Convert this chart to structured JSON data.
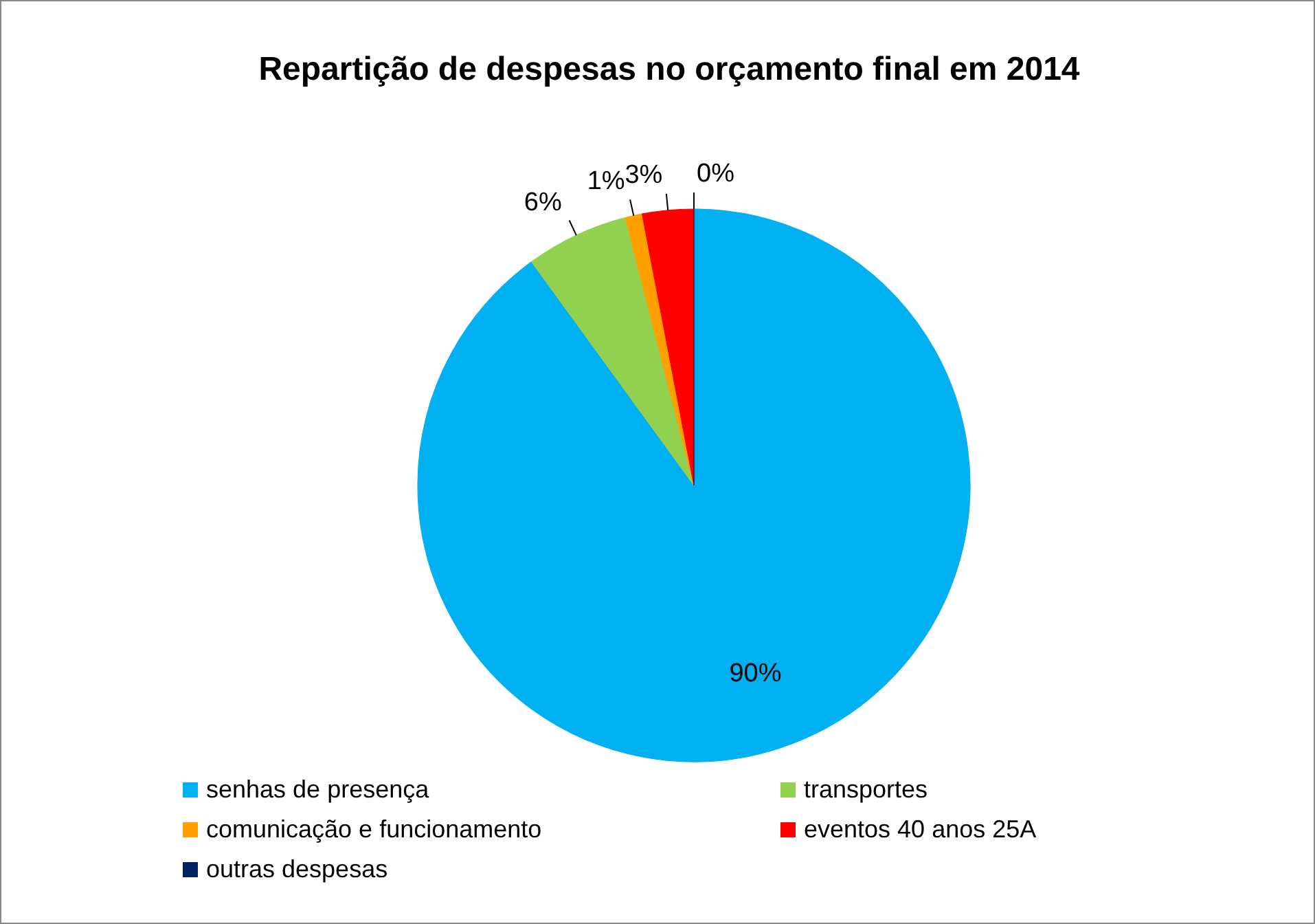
{
  "chart_data": {
    "type": "pie",
    "title": "Repartição de despesas no orçamento final em 2014",
    "categories": [
      "senhas de presença",
      "transportes",
      "comunicação e funcionamento",
      "eventos 40 anos 25A",
      "outras despesas"
    ],
    "values": [
      90,
      6,
      1,
      3,
      0
    ],
    "colors": [
      "#00b0f0",
      "#92d050",
      "#ffa000",
      "#ff0000",
      "#002060"
    ],
    "value_labels": [
      "90%",
      "6%",
      "1%",
      "3%",
      "0%"
    ],
    "legend": "bottom"
  }
}
